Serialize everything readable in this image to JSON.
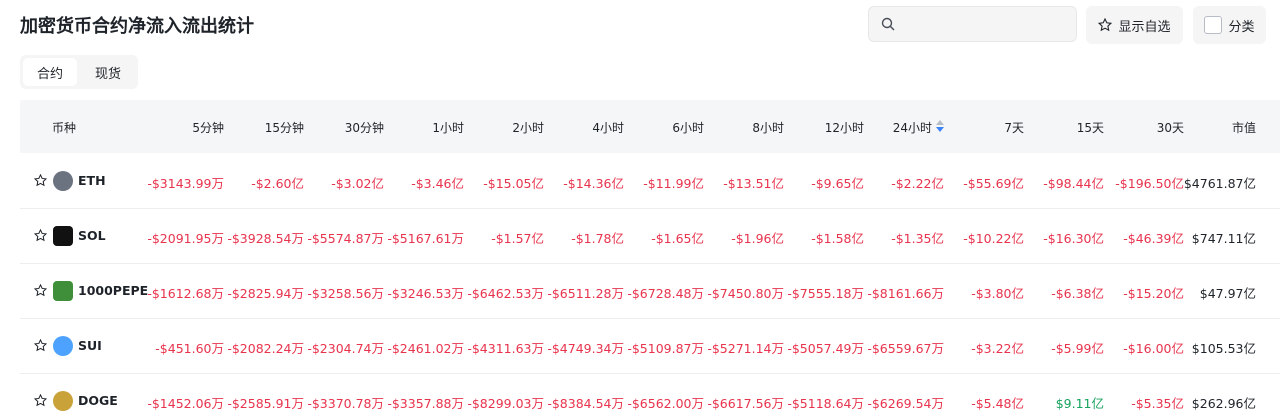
{
  "header": {
    "title": "加密货币合约净流入流出统计",
    "show_favorites": "显示自选",
    "category": "分类"
  },
  "tabs": [
    "合约",
    "现货"
  ],
  "table": {
    "columns": [
      "币种",
      "5分钟",
      "15分钟",
      "30分钟",
      "1小时",
      "2小时",
      "4小时",
      "6小时",
      "8小时",
      "12小时",
      "24小时",
      "7天",
      "15天",
      "30天",
      "市值"
    ],
    "rows": [
      {
        "symbol": "ETH",
        "cells": [
          "-$3143.99万",
          "-$2.60亿",
          "-$3.02亿",
          "-$3.46亿",
          "-$15.05亿",
          "-$14.36亿",
          "-$11.99亿",
          "-$13.51亿",
          "-$9.65亿",
          "-$2.22亿",
          "-$55.69亿",
          "-$98.44亿",
          "-$196.50亿",
          "$4761.87亿"
        ]
      },
      {
        "symbol": "SOL",
        "cells": [
          "-$2091.95万",
          "-$3928.54万",
          "-$5574.87万",
          "-$5167.61万",
          "-$1.57亿",
          "-$1.78亿",
          "-$1.65亿",
          "-$1.96亿",
          "-$1.58亿",
          "-$1.35亿",
          "-$10.22亿",
          "-$16.30亿",
          "-$46.39亿",
          "$747.11亿"
        ]
      },
      {
        "symbol": "1000PEPE",
        "cells": [
          "-$1612.68万",
          "-$2825.94万",
          "-$3258.56万",
          "-$3246.53万",
          "-$6462.53万",
          "-$6511.28万",
          "-$6728.48万",
          "-$7450.80万",
          "-$7555.18万",
          "-$8161.66万",
          "-$3.80亿",
          "-$6.38亿",
          "-$15.20亿",
          "$47.97亿"
        ]
      },
      {
        "symbol": "SUI",
        "cells": [
          "-$451.60万",
          "-$2082.24万",
          "-$2304.74万",
          "-$2461.02万",
          "-$4311.63万",
          "-$4749.34万",
          "-$5109.87万",
          "-$5271.14万",
          "-$5057.49万",
          "-$6559.67万",
          "-$3.22亿",
          "-$5.99亿",
          "-$16.00亿",
          "$105.53亿"
        ]
      },
      {
        "symbol": "DOGE",
        "cells": [
          "-$1452.06万",
          "-$2585.91万",
          "-$3370.78万",
          "-$3357.88万",
          "-$8299.03万",
          "-$8384.54万",
          "-$6562.00万",
          "-$6617.56万",
          "-$5118.64万",
          "-$6269.54万",
          "-$5.48亿",
          "$9.11亿",
          "-$5.35亿",
          "$262.96亿"
        ]
      }
    ]
  }
}
